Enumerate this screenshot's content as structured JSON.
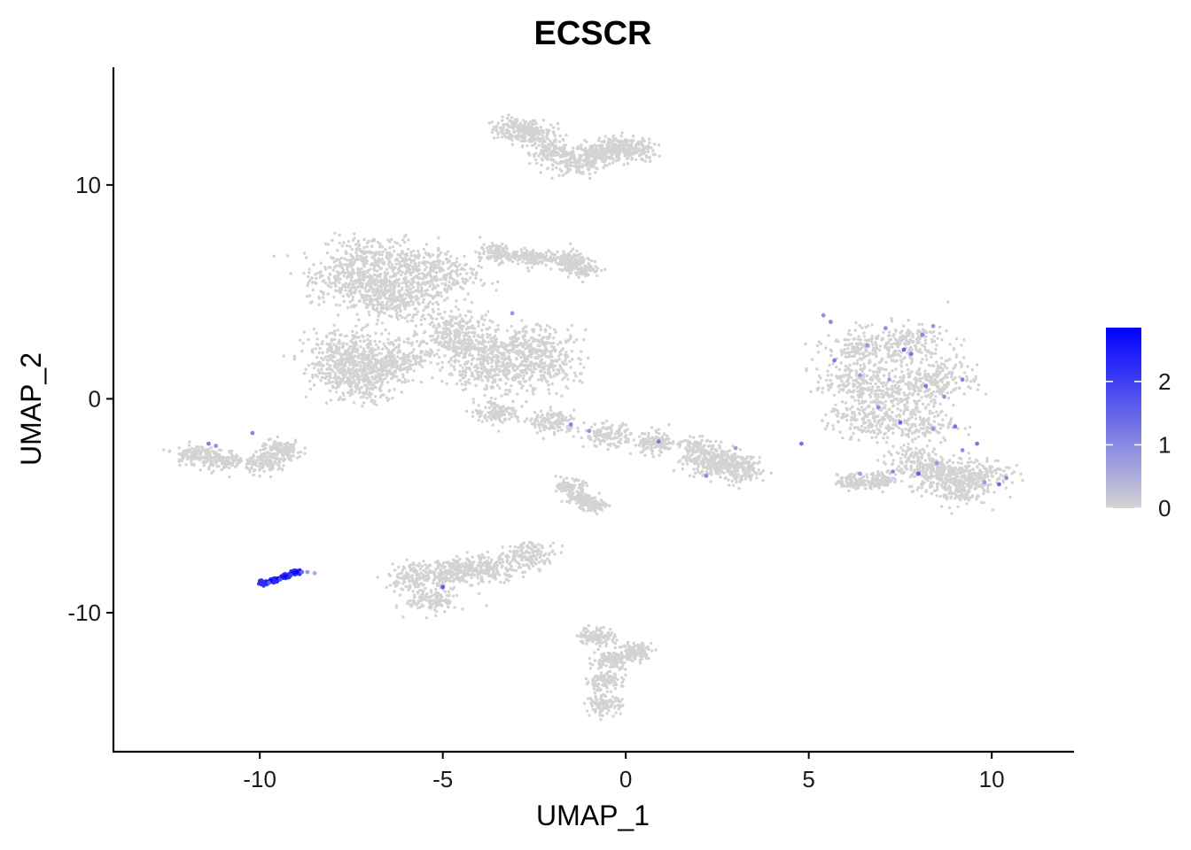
{
  "chart_data": {
    "type": "scatter",
    "title": "ECSCR",
    "xlabel": "UMAP_1",
    "ylabel": "UMAP_2",
    "xlim": [
      -14,
      12.2
    ],
    "ylim": [
      -16.5,
      15.5
    ],
    "x_ticks": [
      -10,
      -5,
      0,
      5,
      10
    ],
    "x_tick_labels": [
      "-10",
      "-5",
      "0",
      "5",
      "10"
    ],
    "y_ticks": [
      -10,
      0,
      10
    ],
    "y_tick_labels": [
      "-10",
      "0",
      "10"
    ],
    "grid": false,
    "color_low": "#d3d3d3",
    "color_high": "#0000ff",
    "colorbar": {
      "min": 0,
      "max": 2.85,
      "ticks": [
        0,
        1,
        2
      ],
      "tick_labels": [
        "0",
        "1",
        "2"
      ],
      "placement": "right"
    },
    "clusters": [
      {
        "points": [
          [
            -3.0,
            12.6
          ],
          [
            -2.5,
            12.4
          ],
          [
            -2.0,
            11.5
          ],
          [
            -1.3,
            11.0
          ],
          [
            -0.8,
            11.4
          ],
          [
            -0.3,
            11.8
          ],
          [
            0.2,
            11.6
          ]
        ],
        "spread": 0.45,
        "value": 0
      },
      {
        "points": [
          [
            -7.0,
            6.6
          ],
          [
            -5.8,
            6.2
          ],
          [
            -6.8,
            5.0
          ],
          [
            -5.2,
            5.6
          ],
          [
            -7.6,
            5.6
          ],
          [
            -6.2,
            4.6
          ]
        ],
        "spread": 0.85,
        "value": 0
      },
      {
        "points": [
          [
            -3.5,
            6.8
          ],
          [
            -2.6,
            6.6
          ],
          [
            -1.6,
            6.5
          ],
          [
            -1.2,
            6.1
          ]
        ],
        "spread": 0.35,
        "value": 0
      },
      {
        "points": [
          [
            -7.8,
            1.6
          ],
          [
            -6.8,
            1.4
          ],
          [
            -7.3,
            0.6
          ],
          [
            -6.2,
            1.9
          ],
          [
            -7.6,
            2.4
          ]
        ],
        "spread": 0.75,
        "value": 0
      },
      {
        "points": [
          [
            -4.6,
            2.4
          ],
          [
            -3.3,
            2.1
          ],
          [
            -2.4,
            2.6
          ],
          [
            -3.8,
            1.2
          ],
          [
            -2.3,
            1.3
          ],
          [
            -4.6,
            3.3
          ]
        ],
        "spread": 0.75,
        "value": 0
      },
      {
        "points": [
          [
            -3.5,
            -0.6
          ],
          [
            -2.0,
            -1.1
          ],
          [
            -0.5,
            -1.7
          ],
          [
            0.8,
            -2.1
          ],
          [
            2.0,
            -2.4
          ]
        ],
        "spread": 0.45,
        "value": 0
      },
      {
        "points": [
          [
            2.8,
            -2.9
          ],
          [
            3.2,
            -3.4
          ],
          [
            2.3,
            -3.1
          ]
        ],
        "spread": 0.45,
        "value": 0
      },
      {
        "points": [
          [
            -1.3,
            -4.6
          ],
          [
            -0.9,
            -5.0
          ],
          [
            -1.5,
            -4.1
          ]
        ],
        "spread": 0.25,
        "value": 0
      },
      {
        "points": [
          [
            6.5,
            2.4
          ],
          [
            7.8,
            2.6
          ],
          [
            6.2,
            0.8
          ],
          [
            7.6,
            0.4
          ],
          [
            8.6,
            1.0
          ],
          [
            6.6,
            -1.0
          ],
          [
            7.9,
            -1.2
          ]
        ],
        "spread": 0.75,
        "value": 0
      },
      {
        "points": [
          [
            8.6,
            -3.5
          ],
          [
            9.6,
            -3.5
          ],
          [
            8.0,
            -3.0
          ],
          [
            9.0,
            -4.2
          ]
        ],
        "spread": 0.65,
        "value": 0
      },
      {
        "points": [
          [
            6.2,
            -3.9
          ],
          [
            7.0,
            -3.8
          ]
        ],
        "spread": 0.3,
        "value": 0
      },
      {
        "points": [
          [
            -11.8,
            -2.6
          ],
          [
            -11.0,
            -2.9
          ],
          [
            -9.8,
            -3.0
          ],
          [
            -9.4,
            -2.4
          ]
        ],
        "spread": 0.4,
        "value": 0
      },
      {
        "points": [
          [
            -5.8,
            -8.3
          ],
          [
            -4.9,
            -8.2
          ],
          [
            -5.3,
            -9.4
          ],
          [
            -4.4,
            -8.0
          ],
          [
            -3.6,
            -7.9
          ],
          [
            -2.6,
            -7.3
          ]
        ],
        "spread": 0.5,
        "value": 0
      },
      {
        "points": [
          [
            -0.8,
            -11.1
          ],
          [
            -0.4,
            -12.2
          ],
          [
            -0.6,
            -13.2
          ],
          [
            -0.6,
            -14.3
          ],
          [
            0.3,
            -11.8
          ]
        ],
        "spread": 0.35,
        "value": 0
      },
      {
        "points": [
          [
            -9.9,
            -8.6
          ],
          [
            -9.6,
            -8.5
          ],
          [
            -9.3,
            -8.3
          ],
          [
            -9.0,
            -8.1
          ]
        ],
        "spread": 0.07,
        "value": 2.2
      }
    ],
    "high_cells": [
      [
        -9.9,
        -8.6,
        2.2
      ],
      [
        -9.8,
        -8.55,
        2.5
      ],
      [
        -9.7,
        -8.5,
        2.7
      ],
      [
        -9.6,
        -8.45,
        2.3
      ],
      [
        -9.5,
        -8.4,
        2.8
      ],
      [
        -9.4,
        -8.35,
        2.6
      ],
      [
        -9.3,
        -8.3,
        2.8
      ],
      [
        -9.2,
        -8.2,
        2.4
      ],
      [
        -9.1,
        -8.15,
        2.7
      ],
      [
        -9.0,
        -8.1,
        2.85
      ],
      [
        -8.9,
        -8.05,
        2.5
      ],
      [
        -9.75,
        -8.6,
        1.6
      ],
      [
        -9.45,
        -8.45,
        1.8
      ],
      [
        -9.15,
        -8.25,
        2.0
      ],
      [
        -8.85,
        -8.1,
        1.4
      ],
      [
        -8.7,
        -8.1,
        0.8
      ],
      [
        -8.5,
        -8.15,
        0.5
      ],
      [
        -5.0,
        -8.8,
        1.6
      ],
      [
        -3.1,
        4.0,
        0.8
      ],
      [
        -1.5,
        -1.2,
        1.1
      ],
      [
        -1.0,
        -1.5,
        0.9
      ],
      [
        0.9,
        -2.0,
        1.2
      ],
      [
        2.2,
        -3.6,
        1.0
      ],
      [
        3.0,
        -2.3,
        0.7
      ],
      [
        4.8,
        -2.1,
        1.3
      ],
      [
        5.4,
        3.9,
        0.9
      ],
      [
        5.6,
        3.6,
        1.0
      ],
      [
        6.6,
        2.5,
        0.8
      ],
      [
        7.1,
        3.3,
        0.9
      ],
      [
        7.6,
        2.3,
        1.5
      ],
      [
        7.8,
        2.1,
        1.3
      ],
      [
        8.1,
        3.0,
        1.0
      ],
      [
        8.4,
        3.4,
        0.8
      ],
      [
        5.7,
        1.8,
        1.2
      ],
      [
        6.4,
        1.1,
        0.8
      ],
      [
        7.2,
        0.9,
        0.7
      ],
      [
        8.2,
        0.6,
        1.2
      ],
      [
        8.7,
        0.1,
        0.9
      ],
      [
        9.2,
        0.9,
        1.1
      ],
      [
        6.9,
        -0.4,
        0.9
      ],
      [
        7.5,
        -1.1,
        1.4
      ],
      [
        8.4,
        -1.4,
        0.8
      ],
      [
        9.0,
        -1.3,
        1.3
      ],
      [
        8.5,
        -3.0,
        0.8
      ],
      [
        9.2,
        -2.4,
        0.9
      ],
      [
        9.6,
        -2.1,
        1.2
      ],
      [
        8.0,
        -3.5,
        1.6
      ],
      [
        9.8,
        -3.9,
        0.8
      ],
      [
        7.3,
        -3.4,
        1.0
      ],
      [
        6.4,
        -3.5,
        0.7
      ],
      [
        10.2,
        -4.0,
        1.4
      ],
      [
        10.4,
        -3.7,
        0.9
      ],
      [
        -11.4,
        -2.1,
        1.1
      ],
      [
        -11.2,
        -2.2,
        0.9
      ],
      [
        -10.2,
        -1.6,
        1.0
      ]
    ]
  }
}
